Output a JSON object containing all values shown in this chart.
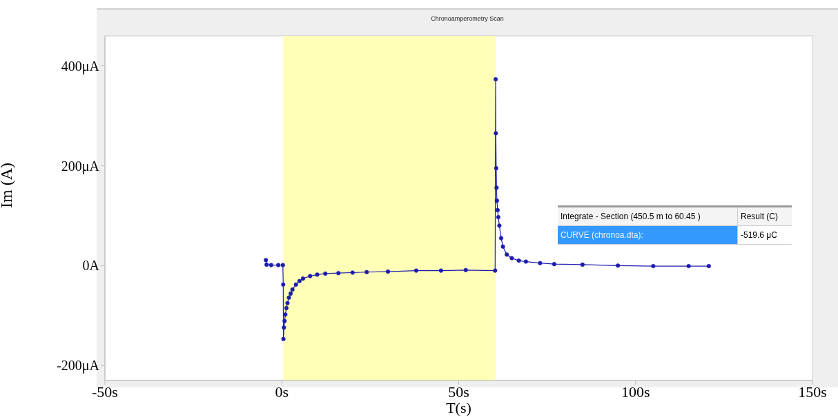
{
  "chart_data": {
    "type": "line",
    "title": "Chronoamperometry Scan",
    "xlabel": "T(s)",
    "ylabel": "Im (A)",
    "xlim": [
      -50,
      150
    ],
    "xticks": [
      {
        "value": -50,
        "label": "-50s"
      },
      {
        "value": 0,
        "label": "0s"
      },
      {
        "value": 50,
        "label": "50s"
      },
      {
        "value": 100,
        "label": "100s"
      },
      {
        "value": 150,
        "label": "150s"
      }
    ],
    "ylim": [
      -230,
      460
    ],
    "yticks": [
      {
        "value": -200,
        "label": "-200μA"
      },
      {
        "value": 0,
        "label": "0A"
      },
      {
        "value": 200,
        "label": "200μA"
      },
      {
        "value": 400,
        "label": "400μA"
      }
    ],
    "series": [
      {
        "color": "#1c1cb0",
        "x": [
          -4.5,
          -4.3,
          -3,
          -1,
          0.3,
          0.4,
          0.45,
          0.6,
          0.8,
          1.0,
          1.3,
          1.6,
          2.0,
          2.5,
          3,
          4,
          5,
          6,
          8,
          10,
          12.3,
          16,
          20,
          24,
          30,
          38,
          45,
          52,
          60.3,
          60.45,
          60.5,
          60.6,
          60.7,
          60.8,
          61,
          61.2,
          61.5,
          62,
          62.5,
          63.6,
          65,
          67,
          69,
          73,
          77,
          85,
          95,
          105,
          115,
          120.7
        ],
        "values": [
          11,
          2,
          1,
          1,
          1,
          -38,
          -147,
          -124,
          -111,
          -98,
          -85,
          -75,
          -64,
          -56,
          -48,
          -38,
          -31,
          -26,
          -21,
          -18,
          -16,
          -15,
          -14,
          -13,
          -12,
          -10,
          -10,
          -9,
          -10,
          373,
          265,
          195,
          156,
          130,
          111,
          97,
          80,
          55,
          38,
          22,
          15,
          10,
          8,
          5,
          3,
          2,
          0,
          -1,
          -1,
          -1
        ]
      }
    ],
    "marker": "circle",
    "line_style": "solid",
    "grid": false,
    "bands": [
      {
        "axis": "x",
        "from": 0.4505,
        "to": 60.45,
        "color": "#ffffb8"
      }
    ],
    "annotations": [
      "Integrate - Section (450.5 m to 60.45 )",
      "Result (C)",
      "CURVE (chronoa.dta):",
      "-519.6 μC"
    ]
  }
}
